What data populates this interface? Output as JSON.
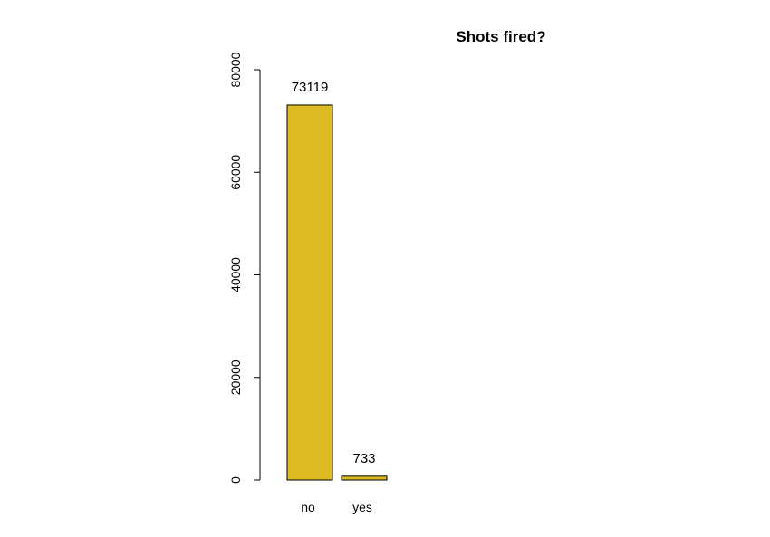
{
  "chart_data": {
    "type": "bar",
    "title": "Shots fired?",
    "categories": [
      "no",
      "yes"
    ],
    "values": [
      73119,
      733
    ],
    "data_labels": [
      "73119",
      "733"
    ],
    "xlabel": "",
    "ylabel": "",
    "ylim": [
      0,
      80000
    ],
    "yticks": [
      0,
      20000,
      40000,
      60000,
      80000
    ],
    "ytick_labels": [
      "0",
      "20000",
      "40000",
      "60000",
      "80000"
    ],
    "bar_color": "#DDBB22",
    "bar_edge_color": "#000000",
    "grid": false,
    "legend": "none"
  }
}
